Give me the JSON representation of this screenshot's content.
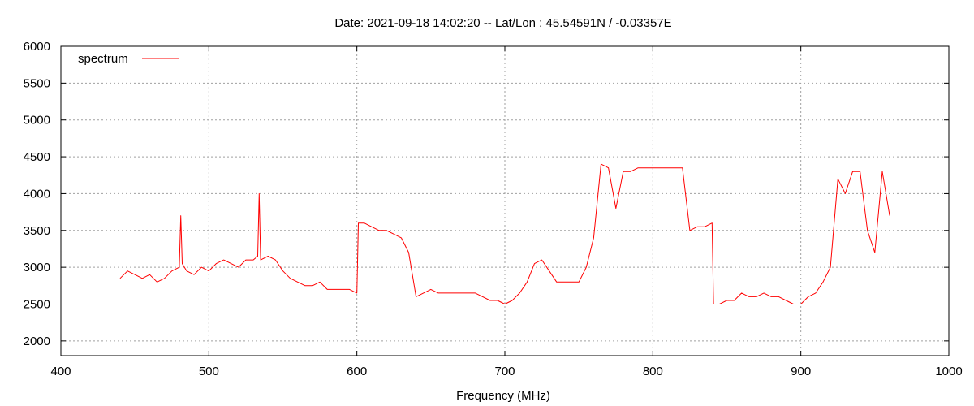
{
  "chart_data": {
    "type": "line",
    "title": "Date: 2021-09-18 14:02:20  --  Lat/Lon : 45.54591N / -0.03357E",
    "xlabel": "Frequency (MHz)",
    "ylabel": "",
    "xlim": [
      400,
      1000
    ],
    "ylim": [
      1800,
      6000
    ],
    "xticks": [
      400,
      500,
      600,
      700,
      800,
      900,
      1000
    ],
    "yticks": [
      2000,
      2500,
      3000,
      3500,
      4000,
      4500,
      5000,
      5500,
      6000
    ],
    "grid": true,
    "legend": "top-left",
    "series": [
      {
        "name": "spectrum",
        "color": "#ff0000",
        "x": [
          440,
          445,
          450,
          455,
          460,
          465,
          470,
          475,
          480,
          481,
          482,
          485,
          490,
          495,
          500,
          505,
          510,
          515,
          520,
          525,
          530,
          533,
          534,
          535,
          540,
          545,
          550,
          555,
          560,
          565,
          570,
          575,
          580,
          585,
          590,
          595,
          600,
          601,
          605,
          610,
          615,
          620,
          625,
          630,
          635,
          640,
          645,
          650,
          655,
          660,
          665,
          670,
          675,
          680,
          685,
          690,
          695,
          700,
          705,
          710,
          715,
          720,
          725,
          730,
          735,
          740,
          745,
          750,
          755,
          760,
          765,
          770,
          775,
          780,
          785,
          790,
          795,
          800,
          805,
          810,
          815,
          820,
          825,
          830,
          835,
          840,
          841,
          845,
          850,
          855,
          860,
          865,
          870,
          875,
          880,
          885,
          890,
          895,
          900,
          905,
          910,
          915,
          920,
          925,
          930,
          935,
          940,
          945,
          950,
          955,
          960
        ],
        "values": [
          2850,
          2950,
          2900,
          2850,
          2900,
          2800,
          2850,
          2950,
          3000,
          3700,
          3050,
          2950,
          2900,
          3000,
          2950,
          3050,
          3100,
          3050,
          3000,
          3100,
          3100,
          3150,
          4000,
          3100,
          3150,
          3100,
          2950,
          2850,
          2800,
          2750,
          2750,
          2800,
          2700,
          2700,
          2700,
          2700,
          2650,
          3600,
          3600,
          3550,
          3500,
          3500,
          3450,
          3400,
          3200,
          2600,
          2650,
          2700,
          2650,
          2650,
          2650,
          2650,
          2650,
          2650,
          2600,
          2550,
          2550,
          2500,
          2550,
          2650,
          2800,
          3050,
          3100,
          2950,
          2800,
          2800,
          2800,
          2800,
          3000,
          3400,
          4400,
          4350,
          3800,
          4300,
          4300,
          4350,
          4350,
          4350,
          4350,
          4350,
          4350,
          4350,
          3500,
          3550,
          3550,
          3600,
          2500,
          2500,
          2550,
          2550,
          2650,
          2600,
          2600,
          2650,
          2600,
          2600,
          2550,
          2500,
          2500,
          2600,
          2650,
          2800,
          3000,
          4200,
          4000,
          4300,
          4300,
          3500,
          3200,
          4300,
          3700
        ]
      }
    ]
  }
}
